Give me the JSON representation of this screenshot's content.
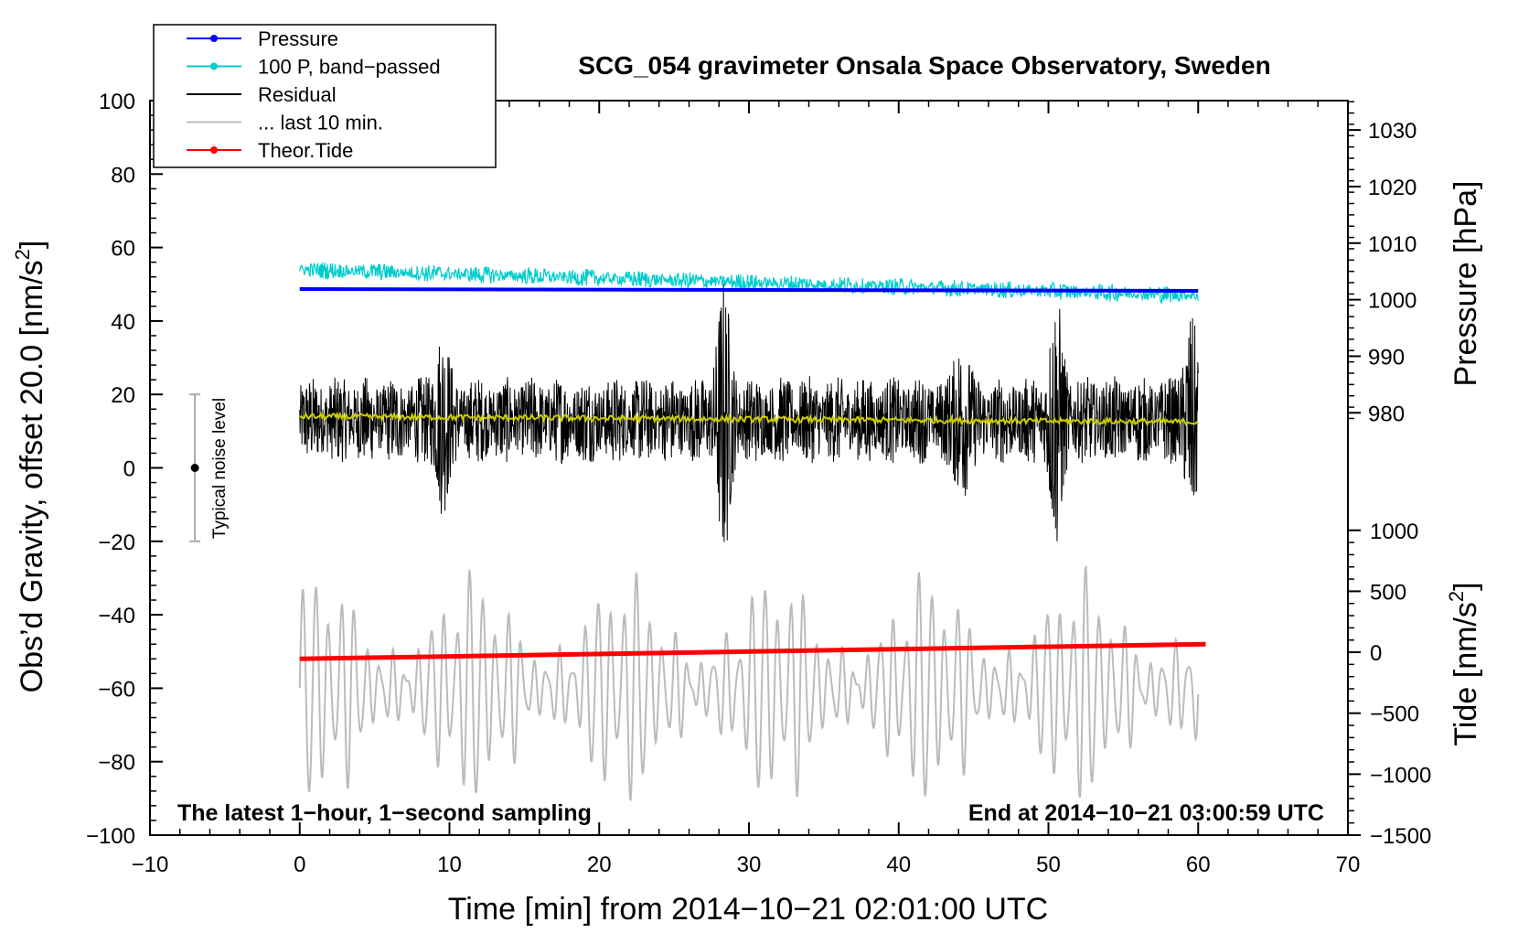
{
  "chart_data": {
    "type": "line",
    "title": "SCG_054 gravimeter Onsala Space Observatory, Sweden",
    "xlabel": "Time [min] from 2014−10−21 02:01:00 UTC",
    "ylabel_left": "Obs’d Gravity, offset 20.0 [nm/s",
    "ylabel_left_sup": "2",
    "ylabel_left_close": "]",
    "ylabel_pressure": "Pressure [hPa]",
    "ylabel_tide": "Tide [nm/s",
    "ylabel_tide_sup": "2",
    "ylabel_tide_close": "]",
    "xlim": [
      -10,
      70
    ],
    "ylim": [
      -100,
      100
    ],
    "x_ticks": [
      -10,
      0,
      10,
      20,
      30,
      40,
      50,
      60,
      70
    ],
    "x_tick_labels": [
      "−10",
      "0",
      "10",
      "20",
      "30",
      "40",
      "50",
      "60",
      "70"
    ],
    "y_ticks": [
      -100,
      -80,
      -60,
      -40,
      -20,
      0,
      20,
      40,
      60,
      80,
      100
    ],
    "y_tick_labels": [
      "−100",
      "−80",
      "−60",
      "−40",
      "−20",
      "0",
      "20",
      "40",
      "60",
      "80",
      "100"
    ],
    "pressure_ticks": [
      980,
      990,
      1000,
      1010,
      1020,
      1030
    ],
    "pressure_tick_labels": [
      "980",
      "990",
      "1000",
      "1010",
      "1020",
      "1030"
    ],
    "pressure_axis_map": {
      "value_a": 980,
      "gravity_a": 15,
      "value_b": 1030,
      "gravity_b": 92
    },
    "tide_ticks": [
      -1500,
      -1000,
      -500,
      0,
      500,
      1000
    ],
    "tide_tick_labels": [
      "−1500",
      "−1000",
      "−500",
      "0",
      "500",
      "1000"
    ],
    "tide_axis_map": {
      "value_a": -1500,
      "gravity_a": -100,
      "value_b": 1000,
      "gravity_b": -17
    },
    "legend": {
      "position": "top-left",
      "entries": [
        {
          "label": "Pressure",
          "color": "#0000ff",
          "marker": true
        },
        {
          "label": "100 P, band−passed",
          "color": "#00cccc",
          "marker": true
        },
        {
          "label": "Residual",
          "color": "#000000",
          "marker": false
        },
        {
          "label": "... last 10 min.",
          "color": "#bbbbbb",
          "marker": false
        },
        {
          "label": "Theor.Tide",
          "color": "#ff0000",
          "marker": true
        }
      ]
    },
    "annotations": {
      "bottom_left": "The latest 1−hour, 1−second sampling",
      "bottom_right": "End at 2014−10−21 03:00:59 UTC",
      "noise_label": "Typical noise level"
    },
    "noise_bar": {
      "x": -7,
      "y_center": 0,
      "y_min": -20,
      "y_max": 20
    },
    "series": [
      {
        "name": "Pressure",
        "color": "#0000ff",
        "x_range": [
          0,
          60
        ],
        "start": 48.7,
        "end": 48.2
      },
      {
        "name": "100 P, band−passed",
        "color": "#00cccc",
        "x_range": [
          0,
          60
        ],
        "start": 54.0,
        "end": 47.0,
        "noise_amp": 2.0
      },
      {
        "name": "Residual",
        "color": "#000000",
        "x_range": [
          0,
          60
        ],
        "center": 13,
        "base_amp": 12,
        "bursts": [
          {
            "x": 28.3,
            "amp": 28
          },
          {
            "x": 50.5,
            "amp": 24
          },
          {
            "x": 9.5,
            "amp": 16
          },
          {
            "x": 44.2,
            "amp": 14
          },
          {
            "x": 59.5,
            "amp": 18
          }
        ]
      },
      {
        "name": "Residual smoothed",
        "color": "#cccc00",
        "x_range": [
          0,
          60
        ],
        "start": 14.0,
        "end": 12.5
      },
      {
        "name": "... last 10 min.",
        "color": "#bbbbbb",
        "x_range": [
          0,
          60
        ],
        "center": -60,
        "amp_max": 32,
        "amp_min": 5,
        "cycles": 70
      },
      {
        "name": "Theor.Tide",
        "color": "#ff0000",
        "x_range": [
          0,
          60.5
        ],
        "start": -52,
        "end": -48
      }
    ]
  }
}
